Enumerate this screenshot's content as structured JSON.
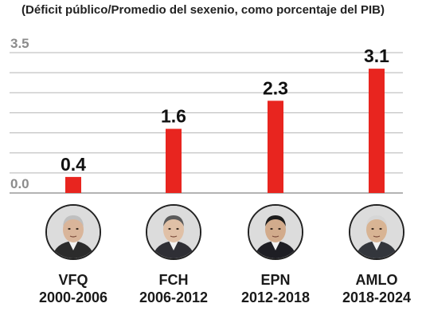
{
  "chart_data": {
    "type": "bar",
    "subtitle": "(Déficit público/Promedio del sexenio, como porcentaje del PIB)",
    "categories": [
      "VFQ",
      "FCH",
      "EPN",
      "AMLO"
    ],
    "periods": [
      "2000-2006",
      "2006-2012",
      "2012-2018",
      "2018-2024"
    ],
    "values": [
      0.4,
      1.6,
      2.3,
      3.1
    ],
    "value_labels": [
      "0.4",
      "1.6",
      "2.3",
      "3.1"
    ],
    "ylim": [
      0,
      3.5
    ],
    "ytick_labels": [
      "0.0",
      "3.5"
    ],
    "grid": true,
    "bar_color": "#e8251f"
  },
  "portraits": [
    "photo-vfq",
    "photo-fch",
    "photo-epn",
    "photo-amlo"
  ]
}
